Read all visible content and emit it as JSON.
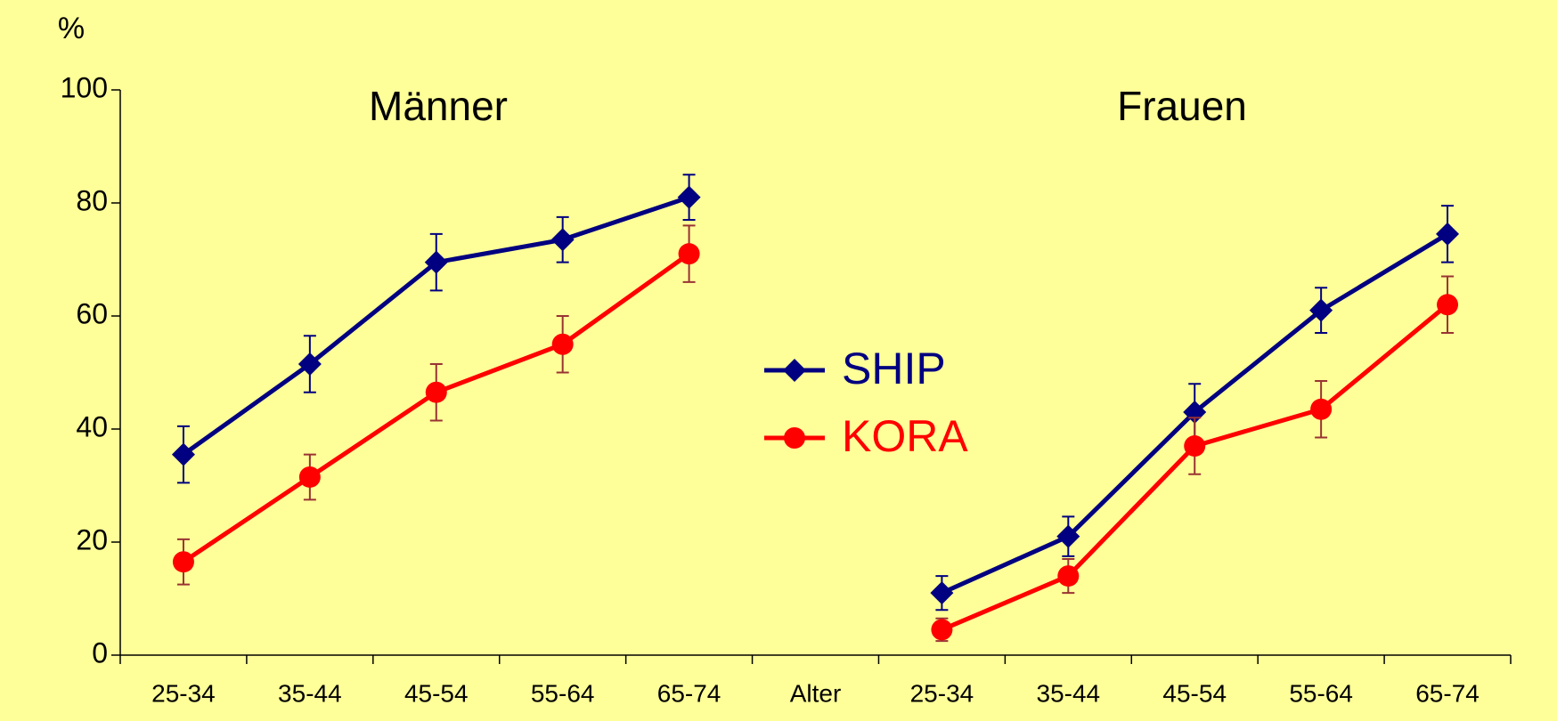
{
  "chart_data": {
    "type": "line",
    "ylabel": "%",
    "annotations": [
      "Männer",
      "Frauen"
    ],
    "categories": [
      "25-34",
      "35-44",
      "45-54",
      "55-64",
      "65-74",
      "Alter",
      "25-34",
      "35-44",
      "45-54",
      "55-64",
      "65-74"
    ],
    "series": [
      {
        "name": "SHIP",
        "color": "#000080",
        "error_color": "#000080",
        "marker": "diamond",
        "values": [
          35.5,
          51.5,
          69.5,
          73.5,
          81,
          null,
          11,
          21,
          43,
          61,
          74.5
        ],
        "errors": [
          5,
          5,
          5,
          4,
          4,
          null,
          3,
          3.5,
          5,
          4,
          5
        ]
      },
      {
        "name": "KORA",
        "color": "#ff0000",
        "error_color": "#993333",
        "marker": "circle",
        "values": [
          16.5,
          31.5,
          46.5,
          55,
          71,
          null,
          4.5,
          14,
          37,
          43.5,
          62
        ],
        "errors": [
          4,
          4,
          5,
          5,
          5,
          null,
          2,
          3,
          5,
          5,
          5
        ]
      }
    ],
    "ylim": [
      0,
      100
    ],
    "yticks": [
      0,
      20,
      40,
      60,
      80,
      100
    ],
    "grid": false
  }
}
